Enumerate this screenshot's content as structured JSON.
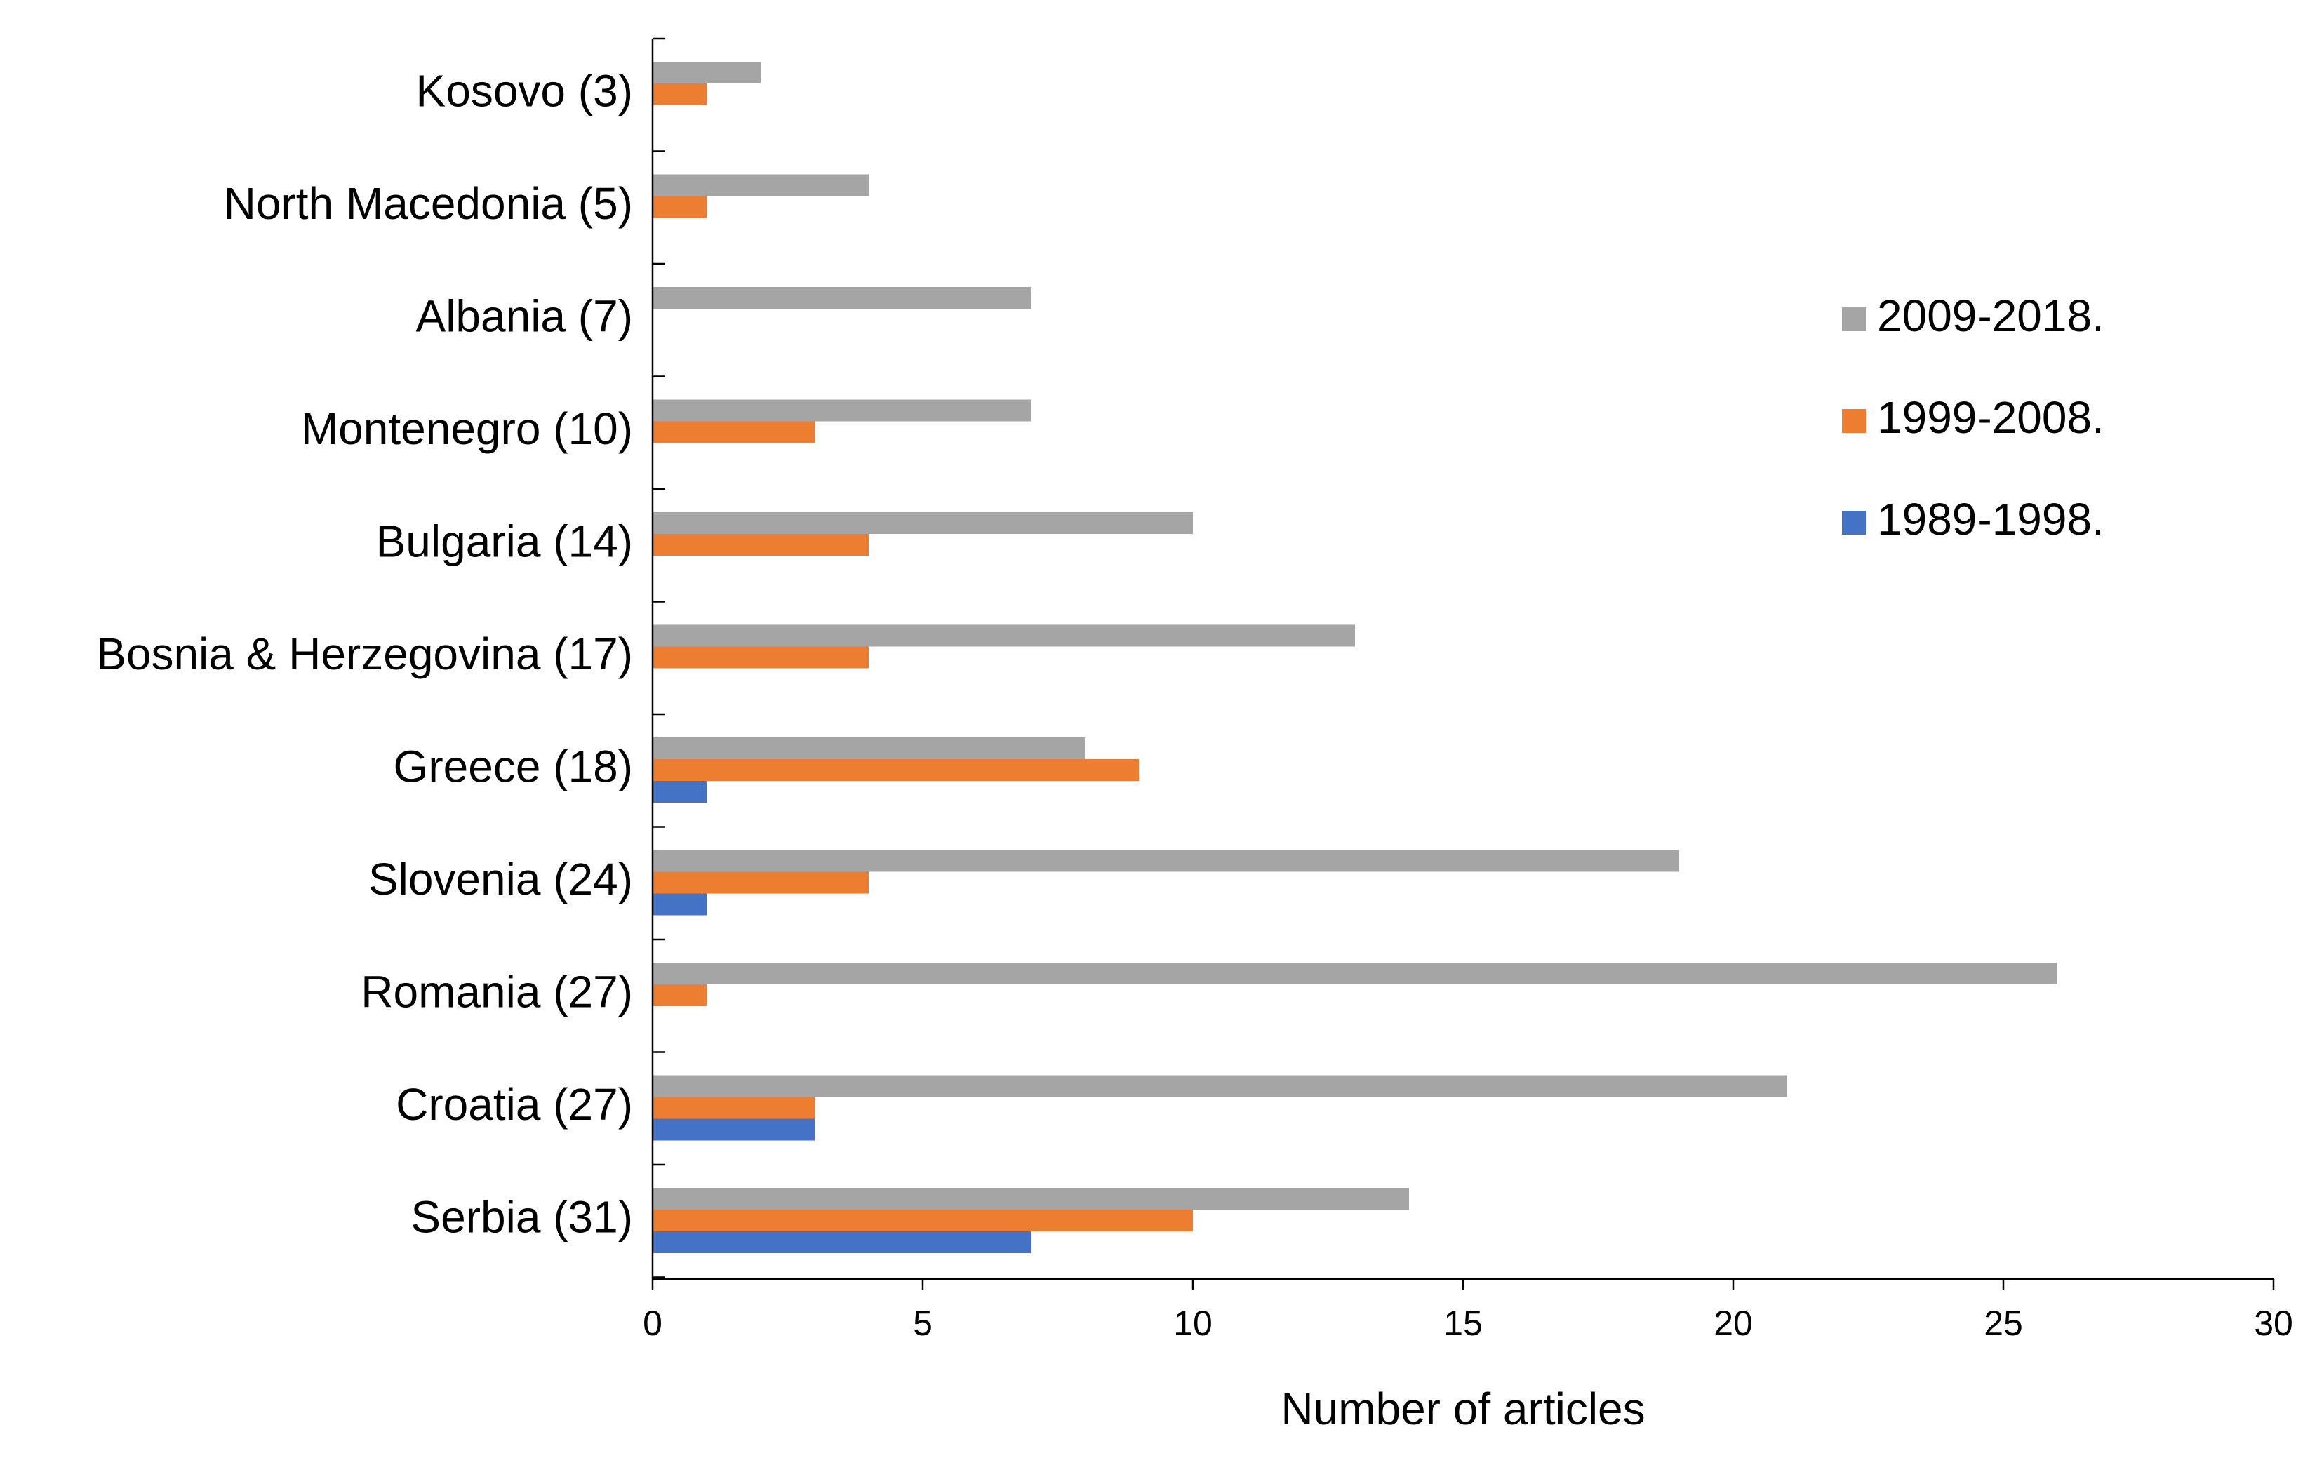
{
  "chart_data": {
    "type": "bar",
    "orientation": "horizontal",
    "title": "",
    "xlabel": "Number of articles",
    "ylabel": "",
    "xlim": [
      0,
      30
    ],
    "x_ticks": [
      0,
      5,
      10,
      15,
      20,
      25,
      30
    ],
    "grid": false,
    "legend_position": "right",
    "categories": [
      "Kosovo (3)",
      "North Macedonia (5)",
      "Albania (7)",
      "Montenegro (10)",
      "Bulgaria (14)",
      "Bosnia & Herzegovina (17)",
      "Greece (18)",
      "Slovenia (24)",
      "Romania (27)",
      "Croatia (27)",
      "Serbia (31)"
    ],
    "series": [
      {
        "name": "2009-2018.",
        "color": "#a5a5a5",
        "values": [
          2,
          4,
          7,
          7,
          10,
          13,
          8,
          19,
          26,
          21,
          14
        ]
      },
      {
        "name": "1999-2008.",
        "color": "#ed7d31",
        "values": [
          1,
          1,
          0,
          3,
          4,
          4,
          9,
          4,
          1,
          3,
          10
        ]
      },
      {
        "name": "1989-1998.",
        "color": "#4472c4",
        "values": [
          0,
          0,
          0,
          0,
          0,
          0,
          1,
          1,
          0,
          3,
          7
        ]
      }
    ]
  }
}
